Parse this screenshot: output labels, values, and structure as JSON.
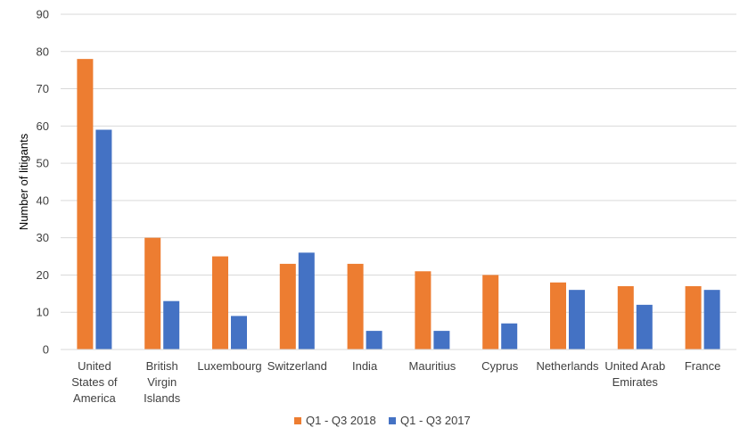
{
  "chart_data": {
    "type": "bar",
    "title": "",
    "xlabel": "",
    "ylabel": "Number of litigants",
    "ylim": [
      0,
      90
    ],
    "yticks": [
      0,
      10,
      20,
      30,
      40,
      50,
      60,
      70,
      80,
      90
    ],
    "grid": true,
    "legend_position": "bottom",
    "categories": [
      [
        "United",
        "States of",
        "America"
      ],
      [
        "British",
        "Virgin",
        "Islands"
      ],
      [
        "Luxembourg"
      ],
      [
        "Switzerland"
      ],
      [
        "India"
      ],
      [
        "Mauritius"
      ],
      [
        "Cyprus"
      ],
      [
        "Netherlands"
      ],
      [
        "United Arab",
        "Emirates"
      ],
      [
        "France"
      ]
    ],
    "series": [
      {
        "name": "Q1 - Q3 2018",
        "color": "#ED7D31",
        "values": [
          78,
          30,
          25,
          23,
          23,
          21,
          20,
          18,
          17,
          17
        ]
      },
      {
        "name": "Q1 - Q3 2017",
        "color": "#4472C4",
        "values": [
          59,
          13,
          9,
          26,
          5,
          5,
          7,
          16,
          12,
          16
        ]
      }
    ]
  }
}
